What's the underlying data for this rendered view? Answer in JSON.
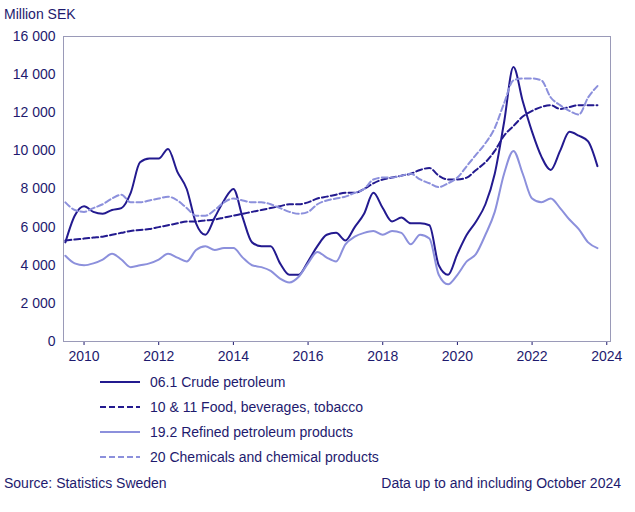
{
  "chart_data": {
    "type": "line",
    "ylabel": "Million SEK",
    "source": "Source: Statistics Sweden",
    "note": "Data up to and including October 2024",
    "x": [
      2009.5,
      2009.75,
      2010,
      2010.25,
      2010.5,
      2010.75,
      2011,
      2011.25,
      2011.5,
      2011.75,
      2012,
      2012.25,
      2012.5,
      2012.75,
      2013,
      2013.25,
      2013.5,
      2013.75,
      2014,
      2014.25,
      2014.5,
      2014.75,
      2015,
      2015.25,
      2015.5,
      2015.75,
      2016,
      2016.25,
      2016.5,
      2016.75,
      2017,
      2017.25,
      2017.5,
      2017.75,
      2018,
      2018.25,
      2018.5,
      2018.75,
      2019,
      2019.25,
      2019.5,
      2019.75,
      2020,
      2020.25,
      2020.5,
      2020.75,
      2021,
      2021.25,
      2021.5,
      2021.75,
      2022,
      2022.25,
      2022.5,
      2022.75,
      2023,
      2023.25,
      2023.5,
      2023.75
    ],
    "series": [
      {
        "name": "06.1 Crude petroleum",
        "color": "#231a8f",
        "line_style": "solid",
        "values": [
          5200,
          6600,
          7100,
          6800,
          6700,
          6900,
          7000,
          7800,
          9400,
          9600,
          9600,
          10100,
          8900,
          8000,
          6200,
          5600,
          6500,
          7400,
          8000,
          6500,
          5200,
          5000,
          5000,
          4100,
          3500,
          3500,
          4200,
          5000,
          5600,
          5700,
          5300,
          6000,
          6700,
          7800,
          7000,
          6300,
          6500,
          6200,
          6200,
          6100,
          4000,
          3500,
          4600,
          5600,
          6300,
          7200,
          8800,
          11500,
          14400,
          12600,
          11000,
          9700,
          9000,
          10000,
          11000,
          10800,
          10500,
          9200
        ]
      },
      {
        "name": "10 & 11 Food, beverages, tobacco",
        "color": "#231a8f",
        "line_style": "dashed",
        "values": [
          5300,
          5350,
          5400,
          5450,
          5500,
          5600,
          5700,
          5800,
          5850,
          5900,
          6000,
          6100,
          6200,
          6300,
          6300,
          6350,
          6400,
          6500,
          6600,
          6700,
          6800,
          6900,
          7000,
          7100,
          7200,
          7200,
          7300,
          7500,
          7600,
          7700,
          7800,
          7800,
          8000,
          8300,
          8500,
          8600,
          8700,
          8800,
          9000,
          9100,
          8700,
          8500,
          8500,
          8600,
          9000,
          9400,
          10000,
          10800,
          11300,
          11800,
          12100,
          12300,
          12400,
          12200,
          12300,
          12400,
          12400,
          12400
        ]
      },
      {
        "name": "19.2 Refined petroleum products",
        "color": "#8c90dc",
        "line_style": "solid",
        "values": [
          4500,
          4100,
          4000,
          4100,
          4300,
          4600,
          4300,
          3900,
          4000,
          4100,
          4300,
          4600,
          4400,
          4200,
          4800,
          5000,
          4800,
          4900,
          4900,
          4400,
          4000,
          3900,
          3700,
          3300,
          3100,
          3400,
          4100,
          4700,
          4400,
          4200,
          5100,
          5500,
          5700,
          5800,
          5600,
          5800,
          5700,
          5100,
          5600,
          5400,
          3500,
          3000,
          3500,
          4200,
          4600,
          5600,
          6800,
          8800,
          10000,
          8800,
          7500,
          7300,
          7500,
          7000,
          6400,
          5900,
          5200,
          4900
        ]
      },
      {
        "name": "20 Chemicals and chemical products",
        "color": "#8c90dc",
        "line_style": "dashed",
        "values": [
          7300,
          6900,
          6800,
          7000,
          7200,
          7500,
          7700,
          7300,
          7300,
          7400,
          7500,
          7600,
          7400,
          7000,
          6600,
          6600,
          6900,
          7300,
          7500,
          7400,
          7300,
          7300,
          7200,
          7000,
          6800,
          6700,
          6800,
          7200,
          7400,
          7500,
          7600,
          7800,
          8000,
          8500,
          8600,
          8600,
          8700,
          8800,
          8500,
          8300,
          8100,
          8300,
          8600,
          9200,
          9800,
          10400,
          11200,
          12500,
          13700,
          13800,
          13800,
          13700,
          12800,
          12400,
          12100,
          11900,
          12800,
          13400
        ]
      }
    ],
    "xlim": [
      2009.45,
      2024.1
    ],
    "xticks": [
      2010,
      2012,
      2014,
      2016,
      2018,
      2020,
      2022,
      2024
    ],
    "ylim": [
      0,
      16000
    ],
    "yticks": [
      0,
      {
        "value": 2000,
        "label": "2 000"
      },
      {
        "value": 4000,
        "label": "4 000"
      },
      {
        "value": 6000,
        "label": "6 000"
      },
      {
        "value": 8000,
        "label": "8 000"
      },
      {
        "value": 10000,
        "label": "10 000"
      },
      {
        "value": 12000,
        "label": "12 000"
      },
      {
        "value": 14000,
        "label": "14 000"
      },
      {
        "value": 16000,
        "label": "16 000"
      }
    ],
    "grid": false
  }
}
